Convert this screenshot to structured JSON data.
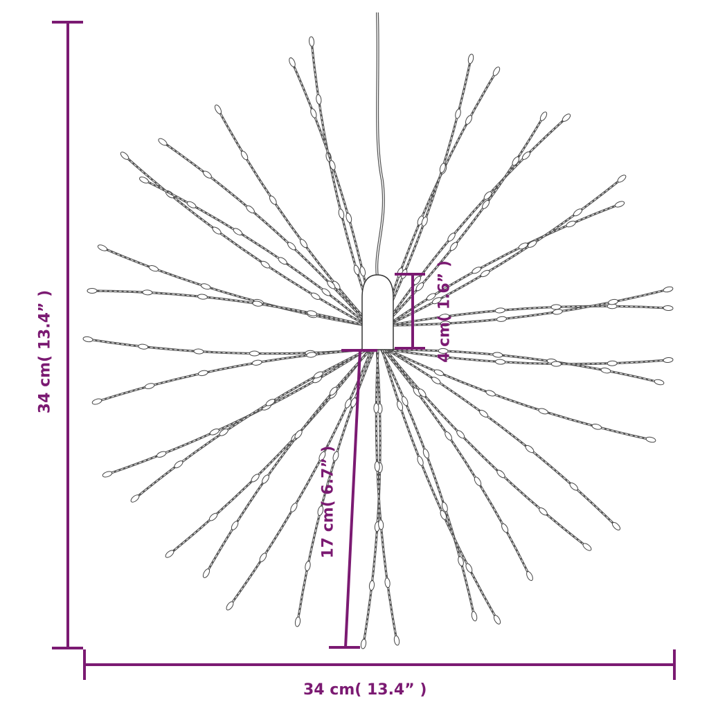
{
  "colors": {
    "dimension": "#7b1a72",
    "strand": "#555555"
  },
  "dimensions": {
    "height_label": "34 cm( 13.4” )",
    "width_label": "34 cm( 13.4” )",
    "hub_label": "4 cm( 1.6” )",
    "strand_label": "17 cm( 6.7” )"
  }
}
